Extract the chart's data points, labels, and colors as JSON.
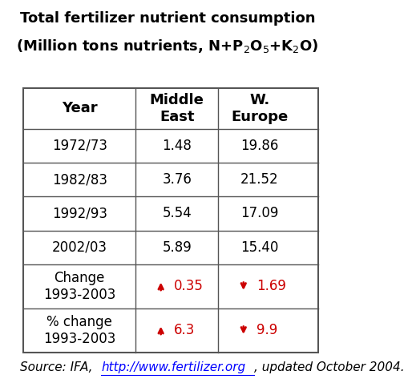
{
  "title_line1": "Total fertilizer nutrient consumption",
  "title_line2": "(Million tons nutrients, N+P$_2$O$_5$+K$_2$O)",
  "col_headers": [
    "Year",
    "Middle\nEast",
    "W.\nEurope"
  ],
  "rows": [
    [
      "1972/73",
      "1.48",
      "19.86"
    ],
    [
      "1982/83",
      "3.76",
      "21.52"
    ],
    [
      "1992/93",
      "5.54",
      "17.09"
    ],
    [
      "2002/03",
      "5.89",
      "15.40"
    ],
    [
      "Change\n1993-2003",
      "up 0.35",
      "down 1.69"
    ],
    [
      "% change\n1993-2003",
      "up 6.3",
      "down 9.9"
    ]
  ],
  "source_text_plain": "Source: IFA, ",
  "source_url": "http://www.fertilizer.org",
  "source_text_end": ", updated October 2004.",
  "background_color": "#ffffff",
  "table_line_color": "#555555",
  "text_color": "#000000",
  "red_color": "#cc0000",
  "title_fontsize": 13,
  "body_fontsize": 12,
  "source_fontsize": 11
}
